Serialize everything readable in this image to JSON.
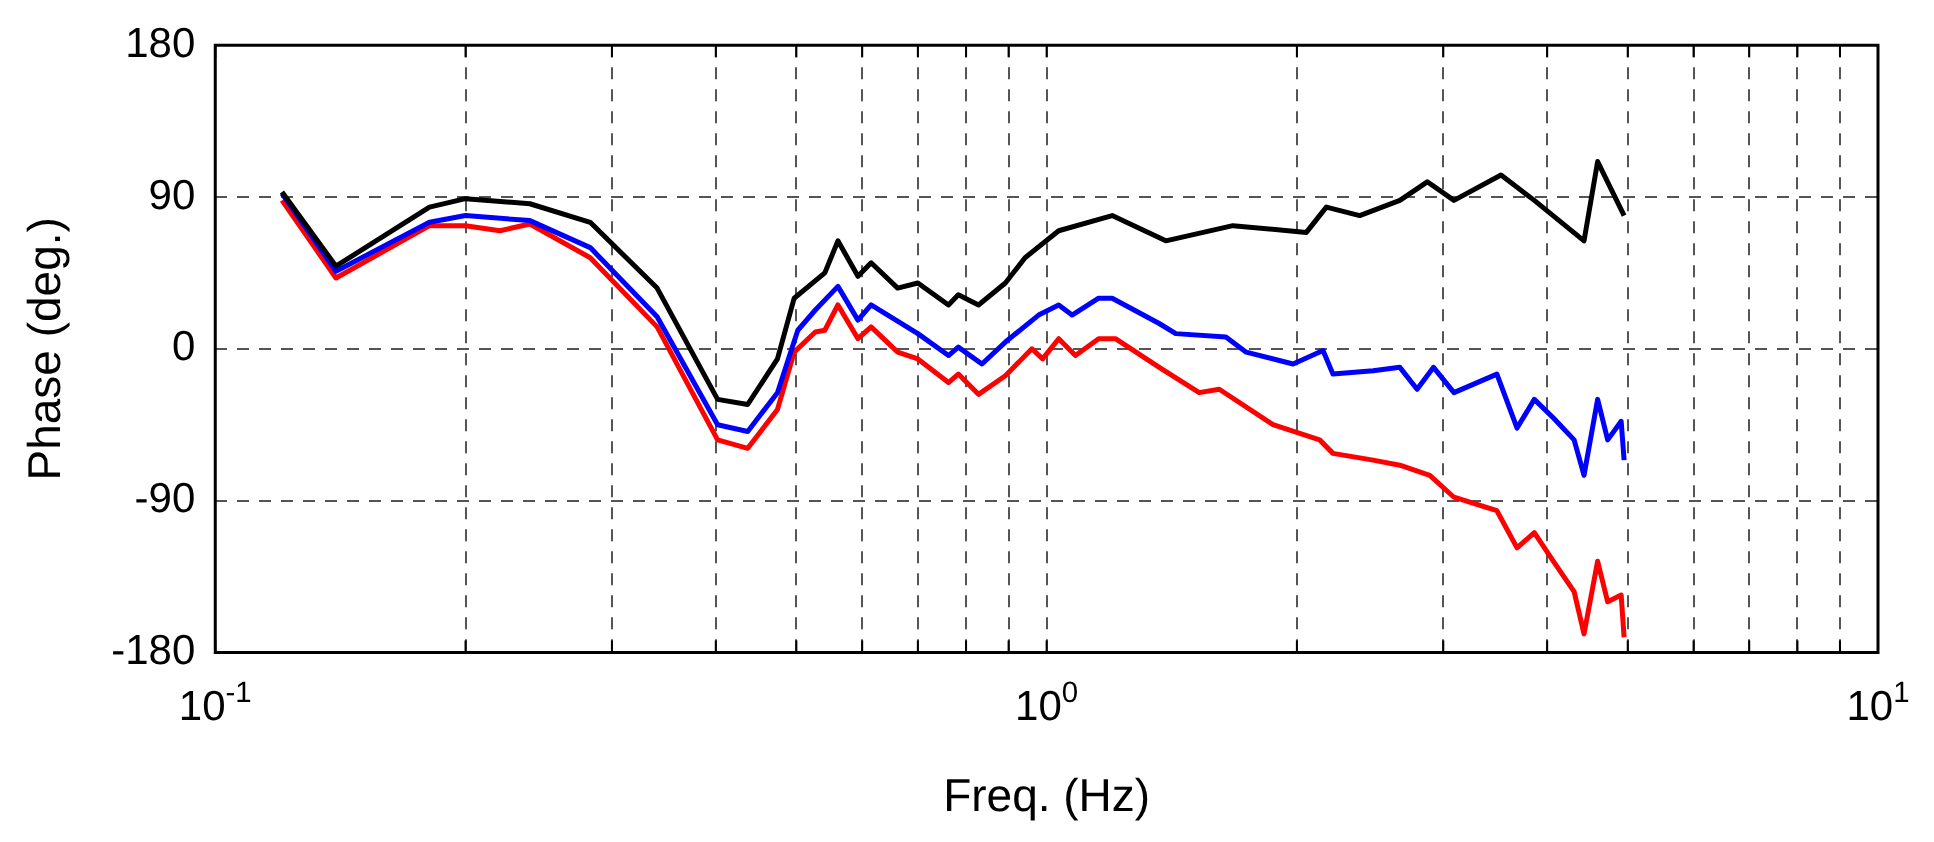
{
  "chart_data": {
    "type": "line",
    "xlabel": "Freq. (Hz)",
    "ylabel": "Phase (deg.)",
    "log": "x",
    "grid": true,
    "legend": false,
    "marker": "none",
    "line_style": "solid",
    "xlim": [
      0.1,
      10
    ],
    "xticks": [
      {
        "value": 0.1,
        "label": "10$^{-1}$"
      },
      {
        "value": 0.2,
        "label": null
      },
      {
        "value": 0.3,
        "label": null
      },
      {
        "value": 0.4,
        "label": null
      },
      {
        "value": 0.5,
        "label": null
      },
      {
        "value": 0.6,
        "label": null
      },
      {
        "value": 0.7,
        "label": null
      },
      {
        "value": 0.8,
        "label": null
      },
      {
        "value": 0.9,
        "label": null
      },
      {
        "value": 1,
        "label": "10$^{0}$"
      },
      {
        "value": 2,
        "label": null
      },
      {
        "value": 3,
        "label": null
      },
      {
        "value": 4,
        "label": null
      },
      {
        "value": 5,
        "label": null
      },
      {
        "value": 6,
        "label": null
      },
      {
        "value": 7,
        "label": null
      },
      {
        "value": 8,
        "label": null
      },
      {
        "value": 9,
        "label": null
      },
      {
        "value": 10,
        "label": "10$^{1}$"
      }
    ],
    "ylim": [
      -180,
      180
    ],
    "yticks": [
      -180,
      -90,
      0,
      90,
      180
    ],
    "series": [
      {
        "color": "#000000",
        "x": [
          0.1203,
          0.1397,
          0.181,
          0.2,
          0.239,
          0.2825,
          0.34,
          0.402,
          0.437,
          0.4745,
          0.497,
          0.541,
          0.561,
          0.593,
          0.615,
          0.662,
          0.7,
          0.762,
          0.783,
          0.828,
          0.892,
          0.942,
          1.034,
          1.199,
          1.391,
          1.675,
          2.053,
          2.17,
          2.38,
          2.66,
          2.87,
          3.09,
          3.52,
          3.86,
          4.43,
          4.6,
          4.95
        ],
        "values": [
          93,
          49,
          84,
          89,
          86,
          75,
          36,
          -30,
          -33,
          -6,
          30,
          45,
          64,
          43,
          51,
          36,
          39,
          26,
          32,
          26,
          39,
          54,
          70,
          79,
          64,
          73,
          69,
          84,
          79,
          88,
          99,
          88,
          103,
          88,
          64,
          111,
          79
        ]
      },
      {
        "color": "#0000ff",
        "x": [
          0.1203,
          0.1397,
          0.181,
          0.2,
          0.239,
          0.2825,
          0.34,
          0.402,
          0.437,
          0.4745,
          0.502,
          0.527,
          0.561,
          0.593,
          0.615,
          0.7,
          0.762,
          0.783,
          0.836,
          0.892,
          0.978,
          1.034,
          1.073,
          1.155,
          1.199,
          1.366,
          1.43,
          1.643,
          1.738,
          1.979,
          2.15,
          2.21,
          2.47,
          2.66,
          2.79,
          2.92,
          3.09,
          3.48,
          3.68,
          3.86,
          4.07,
          4.31,
          4.43,
          4.6,
          4.73,
          4.91,
          4.95
        ],
        "values": [
          92,
          46,
          75,
          79,
          76,
          60,
          19,
          -45,
          -49,
          -26,
          11,
          23,
          37,
          17,
          26,
          9,
          -4,
          1,
          -9,
          4,
          20,
          26,
          20,
          30,
          30,
          15,
          9,
          7,
          -2,
          -9,
          -1,
          -15,
          -13,
          -11,
          -24,
          -11,
          -26,
          -15,
          -47,
          -30,
          -41,
          -54,
          -75,
          -30,
          -54,
          -43,
          -66
        ]
      },
      {
        "color": "#ff0000",
        "x": [
          0.1203,
          0.1397,
          0.181,
          0.2,
          0.22,
          0.239,
          0.2825,
          0.34,
          0.402,
          0.437,
          0.4745,
          0.497,
          0.527,
          0.541,
          0.561,
          0.593,
          0.615,
          0.662,
          0.7,
          0.762,
          0.783,
          0.828,
          0.892,
          0.96,
          0.989,
          1.034,
          1.083,
          1.155,
          1.21,
          1.366,
          1.526,
          1.613,
          1.872,
          2.13,
          2.21,
          2.47,
          2.66,
          2.89,
          3.09,
          3.48,
          3.68,
          3.86,
          4.07,
          4.31,
          4.43,
          4.6,
          4.73,
          4.91,
          4.95
        ],
        "values": [
          88,
          42,
          73,
          73,
          70,
          74,
          54,
          13,
          -54,
          -59,
          -36,
          -2,
          10,
          11,
          26,
          6,
          13,
          -2,
          -6,
          -20,
          -15,
          -27,
          -16,
          0,
          -6,
          6,
          -4,
          6,
          6,
          -11,
          -26,
          -24,
          -45,
          -54,
          -62,
          -66,
          -69,
          -75,
          -88,
          -96,
          -118,
          -109,
          -126,
          -144,
          -169,
          -126,
          -150,
          -146,
          -171
        ]
      }
    ]
  }
}
